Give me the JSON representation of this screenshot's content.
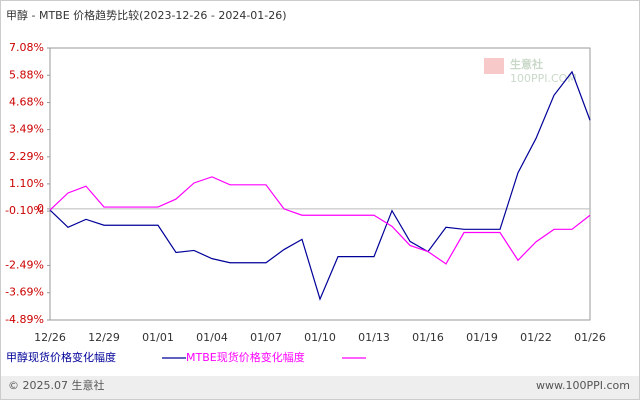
{
  "chart_data": {
    "type": "line",
    "title": "甲醇 - MTBE 价格趋势比较(2023-12-26 - 2024-01-26)",
    "categories": [
      "12/26",
      null,
      null,
      "12/29",
      null,
      null,
      "01/01",
      null,
      null,
      "01/04",
      null,
      null,
      "01/07",
      null,
      null,
      "01/10",
      null,
      null,
      "01/13",
      null,
      null,
      "01/16",
      null,
      null,
      "01/19",
      null,
      null,
      "01/22",
      null,
      null,
      "01/26"
    ],
    "series": [
      {
        "name": "甲醇现货价格变化幅度",
        "color": "#000099",
        "values": [
          -0.05,
          -0.81,
          -0.46,
          -0.72,
          -0.72,
          -0.72,
          -0.72,
          -1.92,
          -1.83,
          -2.19,
          -2.37,
          -2.37,
          -2.37,
          -1.79,
          -1.34,
          -3.97,
          -2.1,
          -2.1,
          -2.1,
          -0.08,
          -1.43,
          -1.88,
          -0.81,
          -0.9,
          -0.9,
          -0.9,
          1.59,
          3.1,
          5.0,
          6.03,
          3.9
        ]
      },
      {
        "name": "MTBE现货价格变化幅度",
        "color": "#ff00ff",
        "values": [
          -0.05,
          0.7,
          1.0,
          0.08,
          0.08,
          0.08,
          0.08,
          0.43,
          1.14,
          1.41,
          1.06,
          1.06,
          1.06,
          0.0,
          -0.28,
          -0.28,
          -0.28,
          -0.28,
          -0.28,
          -0.77,
          -1.61,
          -1.88,
          -2.42,
          -1.04,
          -1.04,
          -1.04,
          -2.26,
          -1.45,
          -0.9,
          -0.9,
          -0.28
        ]
      }
    ],
    "ylim": [
      -4.89,
      7.08
    ],
    "yticks": [
      {
        "value": 7.08,
        "label": "7.08%"
      },
      {
        "value": 5.88,
        "label": "5.88%"
      },
      {
        "value": 4.68,
        "label": "4.68%"
      },
      {
        "value": 3.49,
        "label": "3.49%"
      },
      {
        "value": 2.29,
        "label": "2.29%"
      },
      {
        "value": 1.1,
        "label": "1.10%"
      },
      {
        "value": -0.1,
        "label": "-0.10%"
      },
      0,
      {
        "value": -2.49,
        "label": "-2.49%"
      },
      {
        "value": -3.69,
        "label": "-3.69%"
      },
      {
        "value": -4.89,
        "label": "-4.89%"
      }
    ],
    "grid": false
  },
  "watermark": [
    "生意社",
    "100PPI.COM"
  ],
  "footer": {
    "copyright": "© 2025.07 生意社",
    "site": "www.100PPI.com"
  }
}
